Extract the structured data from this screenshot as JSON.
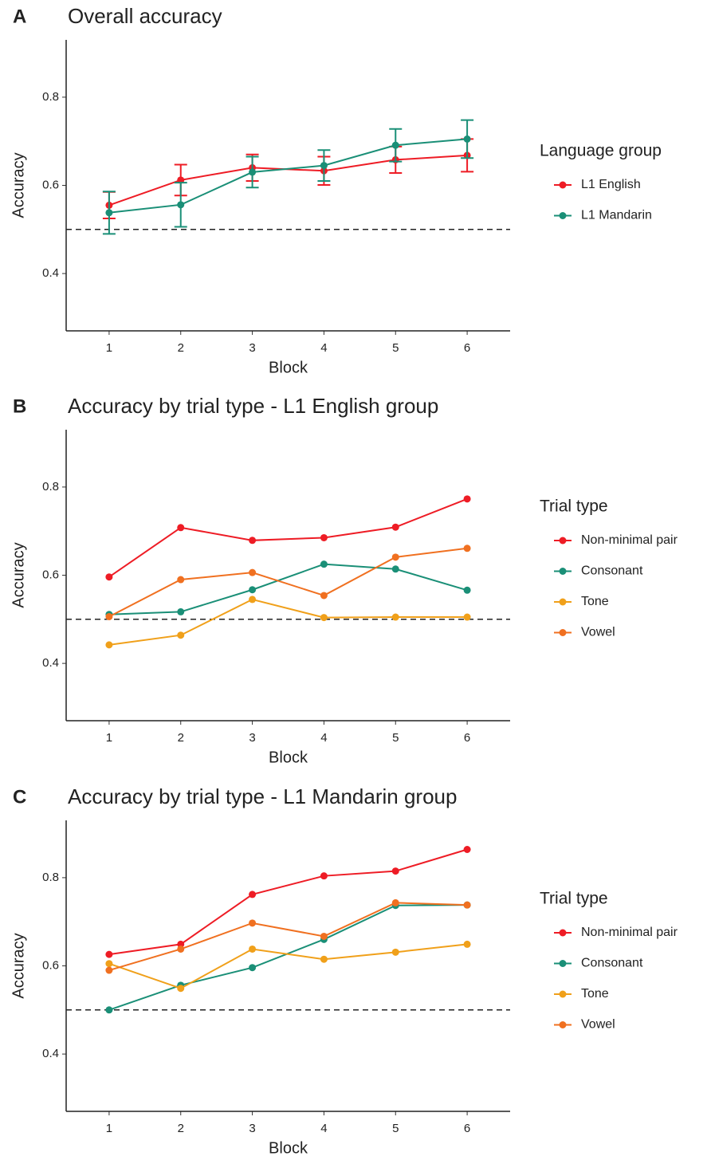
{
  "chart_data": [
    {
      "type": "line",
      "panel_label": "A",
      "title": "Overall accuracy",
      "xlabel": "Block",
      "ylabel": "Accuracy",
      "legend_title": "Language group",
      "legend": "right",
      "x": [
        1,
        2,
        3,
        4,
        5,
        6
      ],
      "xlim": [
        0.4,
        6.6
      ],
      "xticks": [
        1,
        2,
        3,
        4,
        5,
        6
      ],
      "ylim": [
        0.27,
        0.93
      ],
      "yticks": [
        0.4,
        0.6,
        0.8
      ],
      "hline": 0.5,
      "series": [
        {
          "name": "L1 English",
          "color": "#ee1c25",
          "values": [
            0.555,
            0.612,
            0.64,
            0.633,
            0.658,
            0.668
          ],
          "errors": [
            0.03,
            0.035,
            0.03,
            0.032,
            0.03,
            0.037
          ]
        },
        {
          "name": "L1 Mandarin",
          "color": "#1a8f77",
          "values": [
            0.538,
            0.556,
            0.63,
            0.645,
            0.691,
            0.705
          ],
          "errors": [
            0.048,
            0.05,
            0.035,
            0.035,
            0.037,
            0.043
          ]
        }
      ]
    },
    {
      "type": "line",
      "panel_label": "B",
      "title": "Accuracy by trial type - L1 English group",
      "xlabel": "Block",
      "ylabel": "Accuracy",
      "legend_title": "Trial type",
      "legend": "right",
      "x": [
        1,
        2,
        3,
        4,
        5,
        6
      ],
      "xlim": [
        0.4,
        6.6
      ],
      "xticks": [
        1,
        2,
        3,
        4,
        5,
        6
      ],
      "ylim": [
        0.27,
        0.93
      ],
      "yticks": [
        0.4,
        0.6,
        0.8
      ],
      "hline": 0.5,
      "series": [
        {
          "name": "Non-minimal pair",
          "color": "#ee1c25",
          "values": [
            0.596,
            0.708,
            0.679,
            0.685,
            0.709,
            0.773
          ]
        },
        {
          "name": "Consonant",
          "color": "#1a8f77",
          "values": [
            0.511,
            0.517,
            0.567,
            0.625,
            0.614,
            0.566
          ]
        },
        {
          "name": "Tone",
          "color": "#f0a01a",
          "values": [
            0.442,
            0.464,
            0.545,
            0.504,
            0.505,
            0.505
          ]
        },
        {
          "name": "Vowel",
          "color": "#f07020",
          "values": [
            0.506,
            0.59,
            0.606,
            0.554,
            0.641,
            0.661
          ]
        }
      ]
    },
    {
      "type": "line",
      "panel_label": "C",
      "title": "Accuracy by trial type - L1 Mandarin group",
      "xlabel": "Block",
      "ylabel": "Accuracy",
      "legend_title": "Trial type",
      "legend": "right",
      "x": [
        1,
        2,
        3,
        4,
        5,
        6
      ],
      "xlim": [
        0.4,
        6.6
      ],
      "xticks": [
        1,
        2,
        3,
        4,
        5,
        6
      ],
      "ylim": [
        0.27,
        0.93
      ],
      "yticks": [
        0.4,
        0.6,
        0.8
      ],
      "hline": 0.5,
      "series": [
        {
          "name": "Non-minimal pair",
          "color": "#ee1c25",
          "values": [
            0.626,
            0.649,
            0.762,
            0.804,
            0.815,
            0.864
          ]
        },
        {
          "name": "Consonant",
          "color": "#1a8f77",
          "values": [
            0.5,
            0.556,
            0.596,
            0.66,
            0.737,
            0.738
          ]
        },
        {
          "name": "Tone",
          "color": "#f0a01a",
          "values": [
            0.605,
            0.549,
            0.638,
            0.615,
            0.631,
            0.649
          ]
        },
        {
          "name": "Vowel",
          "color": "#f07020",
          "values": [
            0.59,
            0.638,
            0.697,
            0.667,
            0.743,
            0.738
          ]
        }
      ]
    }
  ]
}
